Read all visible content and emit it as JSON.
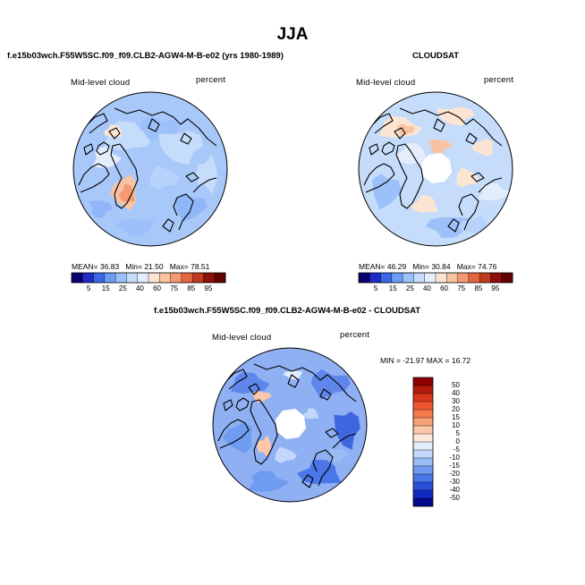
{
  "season": "JJA",
  "panels": [
    {
      "title": "f.e15b03wch.F55W5SC.f09_f09.CLB2-AGW4-M-B-e02 (yrs 1980-1989)",
      "left_label": "Mid-level cloud",
      "right_label": "percent",
      "mean_text": "MEAN=",
      "mean": "36.83",
      "min_text": "Min=",
      "min": "21.50",
      "max_text": "Max=",
      "max": "78.51",
      "pole_hole": false
    },
    {
      "title": "CLOUDSAT",
      "left_label": "Mid-level cloud",
      "right_label": "percent",
      "mean_text": "MEAN=",
      "mean": "46.29",
      "min_text": "Min=",
      "min": "30.84",
      "max_text": "Max=",
      "max": "74.76",
      "pole_hole": true
    },
    {
      "title": "f.e15b03wch.F55W5SC.f09_f09.CLB2-AGW4-M-B-e02 - CLOUDSAT",
      "left_label": "Mid-level cloud",
      "right_label": "percent",
      "minmax_text": "MIN = -21.97  MAX =  16.72",
      "pole_hole": true
    }
  ],
  "colorbar_abs": {
    "labels": [
      "5",
      "15",
      "25",
      "40",
      "60",
      "75",
      "85",
      "95"
    ],
    "colors": [
      "#08006e",
      "#1e2cc8",
      "#3a67e6",
      "#6b9cf5",
      "#9cc1fa",
      "#c6dcfb",
      "#e4edfb",
      "#fbe4d2",
      "#f8c3a2",
      "#f39a72",
      "#e4683f",
      "#c23a1d",
      "#8c1108",
      "#610000"
    ]
  },
  "colorbar_diff": {
    "labels": [
      "50",
      "40",
      "30",
      "20",
      "15",
      "10",
      "5",
      "0",
      "-5",
      "-10",
      "-15",
      "-20",
      "-30",
      "-40",
      "-50"
    ],
    "colors": [
      "#8c0000",
      "#b41a0c",
      "#d8361c",
      "#ee5530",
      "#f6794c",
      "#f7a078",
      "#fbc7a8",
      "#fce7db",
      "#e2ecfb",
      "#c2d7fa",
      "#99bcf6",
      "#6f9bf0",
      "#4a76e8",
      "#2a4fd9",
      "#1228c2",
      "#050a8c"
    ]
  }
}
